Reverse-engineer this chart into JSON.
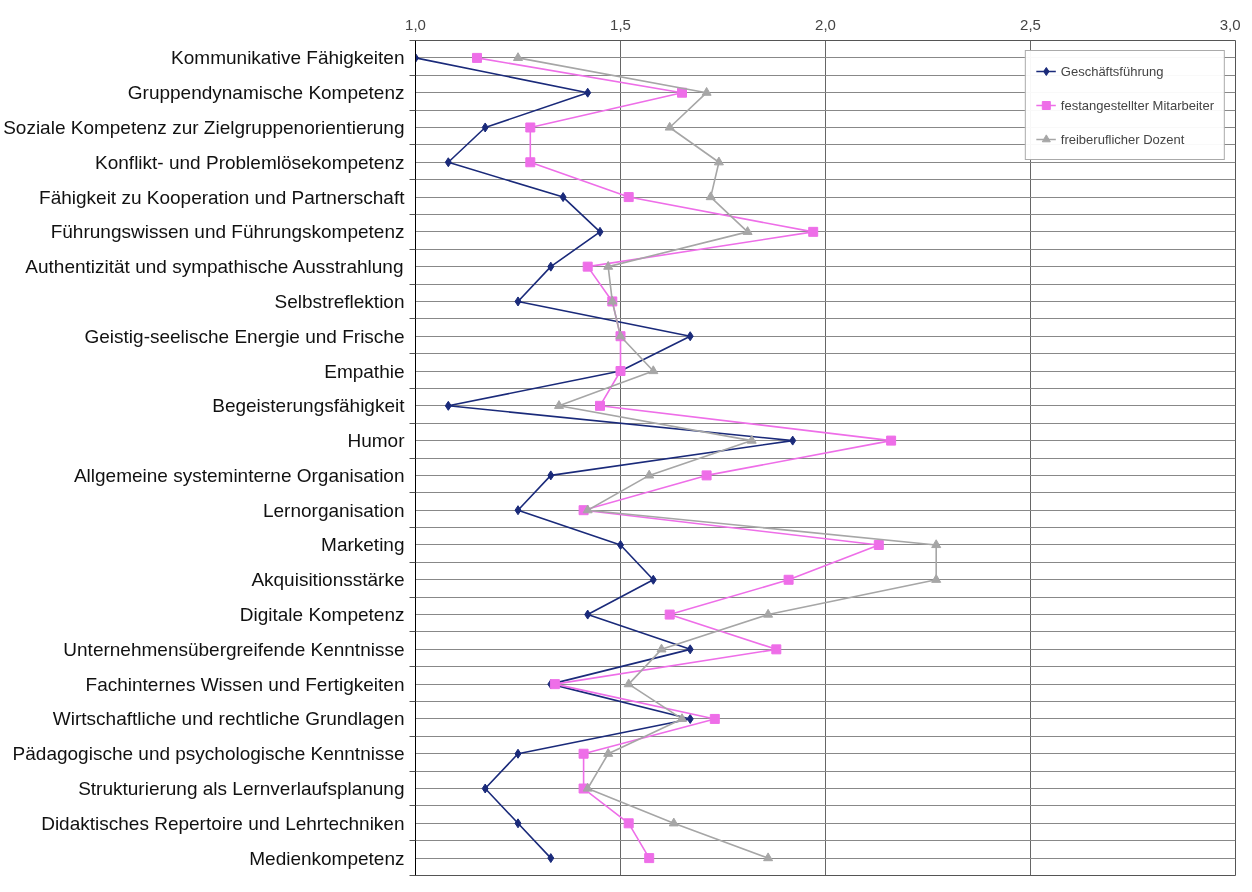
{
  "chart_data": {
    "type": "line",
    "orientation": "horizontal",
    "categories": [
      "Kommunikative Fähigkeiten",
      "Gruppendynamische Kompetenz",
      "Soziale Kompetenz zur Zielgruppenorientierung",
      "Konflikt- und Problemlösekompetenz",
      "Fähigkeit zu Kooperation und Partnerschaft",
      "Führungswissen und Führungskompetenz",
      "Authentizität und sympathische Ausstrahlung",
      "Selbstreflektion",
      "Geistig-seelische Energie und Frische",
      "Empathie",
      "Begeisterungsfähigkeit",
      "Humor",
      "Allgemeine systeminterne Organisation",
      "Lernorganisation",
      "Marketing",
      "Akquisitionsstärke",
      "Digitale Kompetenz",
      "Unternehmensübergreifende Kenntnisse",
      "Fachinternes Wissen und Fertigkeiten",
      "Wirtschaftliche und rechtliche Grundlagen",
      "Pädagogische und psychologische Kenntnisse",
      "Strukturierung als Lernverlaufsplanung",
      "Didaktisches Repertoire und Lehrtechniken",
      "Medienkompetenz"
    ],
    "series": [
      {
        "name": "Geschäftsführung",
        "color": "#1a2a7a",
        "marker": "diamond",
        "values": [
          1.0,
          1.42,
          1.17,
          1.08,
          1.36,
          1.45,
          1.33,
          1.25,
          1.67,
          1.5,
          1.08,
          1.92,
          1.33,
          1.25,
          1.5,
          1.58,
          1.42,
          1.67,
          1.33,
          1.67,
          1.25,
          1.17,
          1.25,
          1.33
        ]
      },
      {
        "name": "festangestellter Mitarbeiter",
        "color": "#ee6ee8",
        "marker": "square",
        "values": [
          1.15,
          1.65,
          1.28,
          1.28,
          1.52,
          1.97,
          1.42,
          1.48,
          1.5,
          1.5,
          1.45,
          2.16,
          1.71,
          1.41,
          2.13,
          1.91,
          1.62,
          1.88,
          1.34,
          1.73,
          1.41,
          1.41,
          1.52,
          1.57
        ]
      },
      {
        "name": "freiberuflicher Dozent",
        "color": "#a6a6a6",
        "marker": "triangle",
        "values": [
          1.25,
          1.71,
          1.62,
          1.74,
          1.72,
          1.81,
          1.47,
          1.48,
          1.5,
          1.58,
          1.35,
          1.82,
          1.57,
          1.42,
          2.27,
          2.27,
          1.86,
          1.6,
          1.52,
          1.65,
          1.47,
          1.42,
          1.63,
          1.86
        ]
      }
    ],
    "xlim": [
      1.0,
      3.0
    ],
    "xticks": [
      {
        "value": 1.0,
        "label": "1,0"
      },
      {
        "value": 1.5,
        "label": "1,5"
      },
      {
        "value": 2.0,
        "label": "2,0"
      },
      {
        "value": 2.5,
        "label": "2,5"
      },
      {
        "value": 3.0,
        "label": "3,0"
      }
    ],
    "grid": true,
    "legend": "top right",
    "line_style": "solid"
  }
}
